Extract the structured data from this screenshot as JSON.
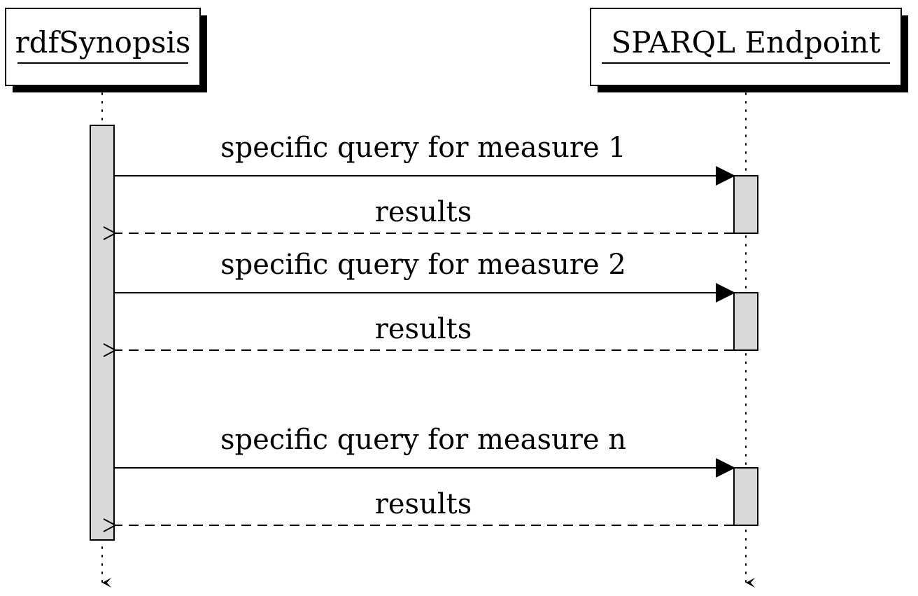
{
  "participants": [
    {
      "name": "rdfSynopsis"
    },
    {
      "name": "SPARQL Endpoint"
    }
  ],
  "messages": [
    {
      "type": "call",
      "label": "specific query for measure 1"
    },
    {
      "type": "reply",
      "label": "results"
    },
    {
      "type": "call",
      "label": "specific query for measure 2"
    },
    {
      "type": "reply",
      "label": "results"
    },
    {
      "type": "call",
      "label": "specific query for measure n"
    },
    {
      "type": "reply",
      "label": "results"
    }
  ]
}
